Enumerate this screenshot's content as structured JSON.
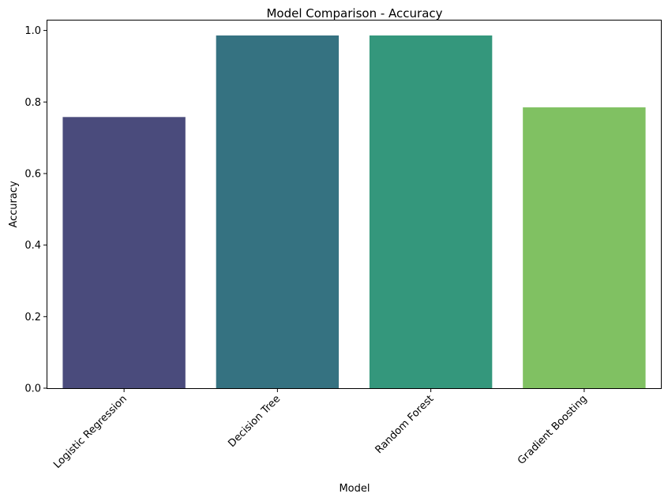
{
  "chart_data": {
    "type": "bar",
    "title": "Model Comparison - Accuracy",
    "xlabel": "Model",
    "ylabel": "Accuracy",
    "categories": [
      "Logistic Regression",
      "Decision Tree",
      "Random Forest",
      "Gradient Boosting"
    ],
    "values": [
      0.758,
      0.986,
      0.986,
      0.785
    ],
    "colors": [
      "#482878",
      "#31688e",
      "#26a07f",
      "#7ad151"
    ],
    "bar_colors_rendered": [
      "#4a4b7c",
      "#357281",
      "#34977c",
      "#80c162"
    ],
    "ylim": [
      0,
      1.03
    ],
    "yticks": [
      0.0,
      0.2,
      0.4,
      0.6,
      0.8,
      1.0
    ],
    "ytick_labels": [
      "0.0",
      "0.2",
      "0.4",
      "0.6",
      "0.8",
      "1.0"
    ],
    "grid": false,
    "legend": "none"
  }
}
